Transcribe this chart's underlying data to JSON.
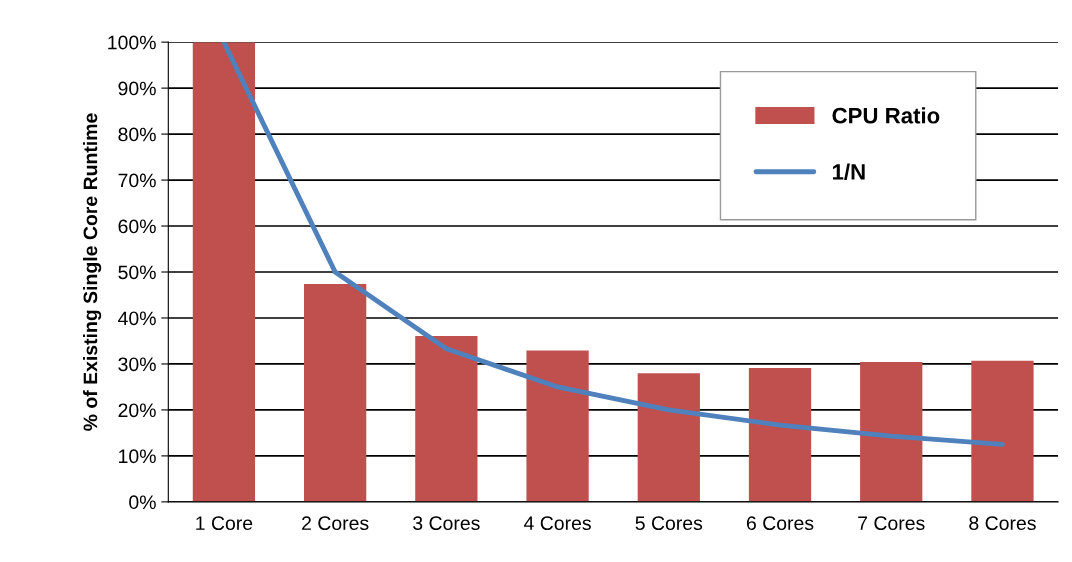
{
  "chart_data": {
    "type": "bar",
    "ylabel": "% of Existing Single Core Runtime",
    "categories": [
      "1 Core",
      "2 Cores",
      "3 Cores",
      "4 Cores",
      "5 Cores",
      "6 Cores",
      "7 Cores",
      "8 Cores"
    ],
    "series": [
      {
        "name": "CPU Ratio",
        "color": "#c0504d",
        "values": [
          100,
          47.4,
          36.1,
          32.9,
          28.0,
          29.1,
          30.4,
          30.7
        ]
      },
      {
        "name": "1/N",
        "type": "line",
        "color": "#4f81bd",
        "values": [
          100,
          50,
          33.3,
          25,
          20,
          16.7,
          14.3,
          12.5
        ]
      }
    ],
    "ylim": [
      0,
      100
    ],
    "yticks": [
      {
        "value": 0,
        "label": "0%"
      },
      {
        "value": 10,
        "label": "10%"
      },
      {
        "value": 20,
        "label": "20%"
      },
      {
        "value": 30,
        "label": "30%"
      },
      {
        "value": 40,
        "label": "40%"
      },
      {
        "value": 50,
        "label": "50%"
      },
      {
        "value": 60,
        "label": "60%"
      },
      {
        "value": 70,
        "label": "70%"
      },
      {
        "value": 80,
        "label": "80%"
      },
      {
        "value": 90,
        "label": "90%"
      },
      {
        "value": 100,
        "label": "100%"
      }
    ],
    "grid": "y",
    "legend": "top right",
    "marker": "none",
    "line_style": "solid"
  }
}
